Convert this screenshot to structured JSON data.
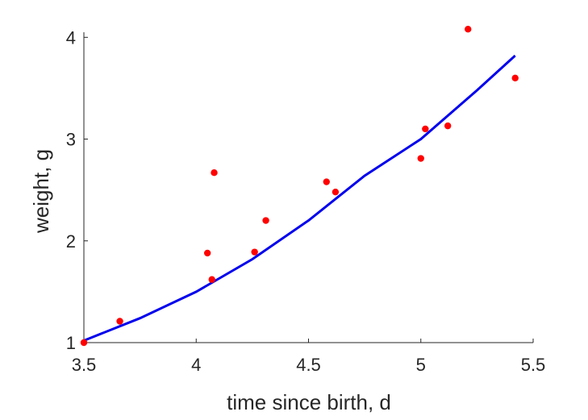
{
  "chart_data": {
    "type": "scatter",
    "xlabel": "time since birth, d",
    "ylabel": "weight, g",
    "xlim": [
      3.5,
      5.5
    ],
    "ylim": [
      1,
      4.05
    ],
    "x_ticks": [
      "3.5",
      "4",
      "4.5",
      "5",
      "5.5"
    ],
    "y_ticks": [
      "1",
      "2",
      "3",
      "4"
    ],
    "grid": false,
    "series": [
      {
        "kind": "scatter",
        "color": "#ff0000",
        "points": [
          {
            "x": 3.5,
            "y": 1.0
          },
          {
            "x": 3.66,
            "y": 1.21
          },
          {
            "x": 4.05,
            "y": 1.88
          },
          {
            "x": 4.07,
            "y": 1.62
          },
          {
            "x": 4.08,
            "y": 2.67
          },
          {
            "x": 4.26,
            "y": 1.89
          },
          {
            "x": 4.31,
            "y": 2.2
          },
          {
            "x": 4.58,
            "y": 2.58
          },
          {
            "x": 4.62,
            "y": 2.48
          },
          {
            "x": 5.0,
            "y": 2.81
          },
          {
            "x": 5.02,
            "y": 3.1
          },
          {
            "x": 5.12,
            "y": 3.13
          },
          {
            "x": 5.21,
            "y": 4.08
          },
          {
            "x": 5.42,
            "y": 3.6
          }
        ]
      },
      {
        "kind": "line",
        "color": "#0000ee",
        "points": [
          {
            "x": 3.5,
            "y": 1.02
          },
          {
            "x": 3.75,
            "y": 1.24
          },
          {
            "x": 4.0,
            "y": 1.5
          },
          {
            "x": 4.25,
            "y": 1.82
          },
          {
            "x": 4.5,
            "y": 2.2
          },
          {
            "x": 4.75,
            "y": 2.64
          },
          {
            "x": 5.0,
            "y": 3.0
          },
          {
            "x": 5.25,
            "y": 3.48
          },
          {
            "x": 5.42,
            "y": 3.82
          }
        ]
      }
    ]
  }
}
